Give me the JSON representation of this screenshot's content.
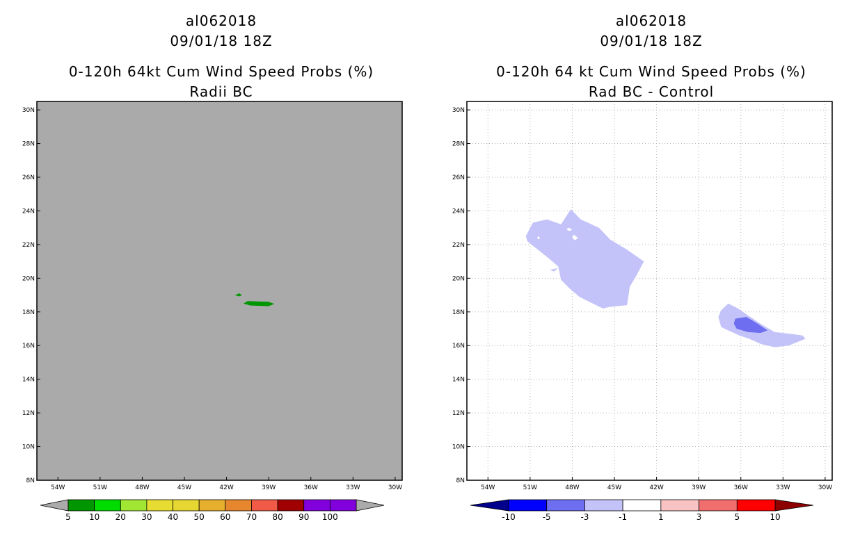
{
  "chart_data": [
    {
      "type": "heatmap",
      "panel": "left",
      "title_lines": [
        "al062018",
        "09/01/18 18Z",
        "0-120h 64kt Cum Wind Speed Probs (%)",
        "Radii BC"
      ],
      "x_ticks": [
        "54W",
        "51W",
        "48W",
        "45W",
        "42W",
        "39W",
        "36W",
        "33W",
        "30W"
      ],
      "y_ticks": [
        "8N",
        "10N",
        "12N",
        "14N",
        "16N",
        "18N",
        "20N",
        "22N",
        "24N",
        "26N",
        "28N",
        "30N"
      ],
      "x_range": [
        -55.5,
        -29.5
      ],
      "y_range": [
        8,
        30.5
      ],
      "grid": false,
      "background_color": "#aaaaaa",
      "colorbar": {
        "labels": [
          "5",
          "10",
          "20",
          "30",
          "40",
          "50",
          "60",
          "70",
          "80",
          "90",
          "100"
        ],
        "colors": [
          "#009600",
          "#00dc00",
          "#a0e632",
          "#e6dc32",
          "#e6d732",
          "#e6af2d",
          "#e6872d",
          "#f05a46",
          "#a00000",
          "#8200dc",
          "#8200dc"
        ],
        "end_colors": [
          "#aaaaaa",
          "#aaaaaa"
        ]
      },
      "regions": [
        {
          "level": "5-10",
          "color": "#009600",
          "polygon": [
            [
              -40.8,
              18.5
            ],
            [
              -40.5,
              18.64
            ],
            [
              -39.0,
              18.6
            ],
            [
              -38.6,
              18.48
            ],
            [
              -39.0,
              18.34
            ],
            [
              -40.3,
              18.38
            ]
          ]
        },
        {
          "level": "5-10",
          "color": "#009600",
          "polygon": [
            [
              -41.4,
              19.0
            ],
            [
              -41.1,
              19.1
            ],
            [
              -40.9,
              19.0
            ],
            [
              -41.1,
              18.92
            ]
          ]
        }
      ]
    },
    {
      "type": "heatmap",
      "panel": "right",
      "title_lines": [
        "al062018",
        "09/01/18 18Z",
        "0-120h 64 kt Cum Wind Speed Probs (%)",
        "Rad BC - Control"
      ],
      "x_ticks": [
        "54W",
        "51W",
        "48W",
        "45W",
        "42W",
        "39W",
        "36W",
        "33W",
        "30W"
      ],
      "y_ticks": [
        "8N",
        "10N",
        "12N",
        "14N",
        "16N",
        "18N",
        "20N",
        "22N",
        "24N",
        "26N",
        "28N",
        "30N"
      ],
      "x_range": [
        -55.5,
        -29.5
      ],
      "y_range": [
        8,
        30.5
      ],
      "grid": true,
      "background_color": "#ffffff",
      "colorbar": {
        "labels": [
          "-10",
          "-5",
          "-3",
          "-1",
          "1",
          "3",
          "5",
          "10"
        ],
        "colors": [
          "#0000ff",
          "#6e6ef0",
          "#c3c3fa",
          "#ffffff",
          "#fac3c3",
          "#f06e6e",
          "#ff0000"
        ],
        "end_colors": [
          "#00008c",
          "#8c0000"
        ]
      },
      "regions": [
        {
          "level": "-3 to -1",
          "color": "#c3c3fa",
          "polygon": [
            [
              -51.3,
              22.5
            ],
            [
              -50.8,
              23.3
            ],
            [
              -49.8,
              23.5
            ],
            [
              -48.8,
              23.2
            ],
            [
              -48.1,
              24.1
            ],
            [
              -47.4,
              23.5
            ],
            [
              -46.1,
              23.0
            ],
            [
              -45.3,
              22.3
            ],
            [
              -44.1,
              21.7
            ],
            [
              -42.9,
              21.0
            ],
            [
              -43.4,
              20.2
            ],
            [
              -43.9,
              19.5
            ],
            [
              -44.1,
              18.4
            ],
            [
              -45.3,
              18.3
            ],
            [
              -45.8,
              18.2
            ],
            [
              -46.3,
              18.4
            ],
            [
              -47.5,
              18.9
            ],
            [
              -48.2,
              19.4
            ],
            [
              -48.8,
              19.9
            ],
            [
              -49.0,
              20.7
            ],
            [
              -49.7,
              21.2
            ],
            [
              -50.6,
              21.8
            ],
            [
              -51.2,
              22.2
            ]
          ]
        },
        {
          "level": "-3 to -1",
          "color": "#c3c3fa",
          "polygon": [
            [
              -49.6,
              20.5
            ],
            [
              -49.0,
              20.6
            ],
            [
              -49.3,
              20.4
            ]
          ]
        },
        {
          "level": "-3 to -1",
          "color": "#c3c3fa",
          "polygon": [
            [
              -37.4,
              18.1
            ],
            [
              -36.9,
              18.5
            ],
            [
              -36.2,
              18.2
            ],
            [
              -35.5,
              17.8
            ],
            [
              -34.6,
              17.3
            ],
            [
              -33.6,
              16.8
            ],
            [
              -32.5,
              16.7
            ],
            [
              -31.6,
              16.6
            ],
            [
              -31.4,
              16.4
            ],
            [
              -32.6,
              16.0
            ],
            [
              -33.6,
              15.9
            ],
            [
              -34.6,
              16.1
            ],
            [
              -35.4,
              16.4
            ],
            [
              -36.1,
              16.6
            ],
            [
              -36.9,
              16.9
            ],
            [
              -37.4,
              17.1
            ],
            [
              -37.6,
              17.7
            ]
          ]
        },
        {
          "level": "-5 to -3",
          "color": "#6e6ef0",
          "polygon": [
            [
              -36.4,
              17.6
            ],
            [
              -35.6,
              17.7
            ],
            [
              -34.8,
              17.3
            ],
            [
              -34.1,
              16.9
            ],
            [
              -34.6,
              16.75
            ],
            [
              -35.5,
              16.8
            ],
            [
              -36.3,
              17.0
            ],
            [
              -36.5,
              17.3
            ]
          ]
        }
      ],
      "holes": [
        [
          [
            -48.3,
            23.0
          ],
          [
            -48.0,
            22.9
          ],
          [
            -48.2,
            22.8
          ],
          [
            -48.4,
            22.9
          ]
        ],
        [
          [
            -47.9,
            22.6
          ],
          [
            -47.6,
            22.4
          ],
          [
            -47.8,
            22.25
          ],
          [
            -48.0,
            22.4
          ]
        ],
        [
          [
            -50.4,
            22.5
          ],
          [
            -50.3,
            22.4
          ],
          [
            -50.4,
            22.3
          ],
          [
            -50.5,
            22.4
          ]
        ]
      ]
    }
  ]
}
